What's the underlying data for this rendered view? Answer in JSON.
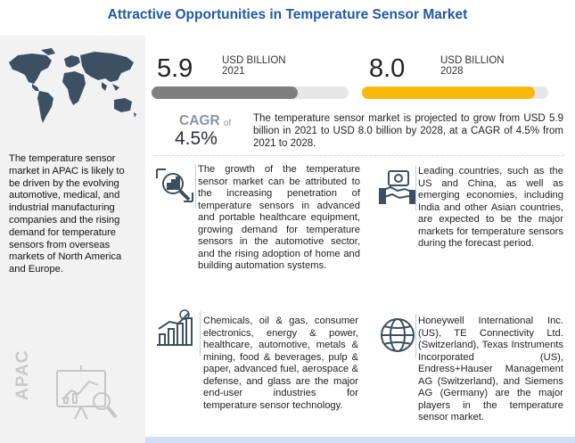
{
  "title": "Attractive Opportunities in Temperature Sensor Market",
  "colors": {
    "title": "#1f5aa6",
    "bar_2021": "#7f7f7f",
    "bar_2028": "#f8b80c",
    "bar_track": "#e6e6e6",
    "accent_line": "#bcd0ea"
  },
  "region_panel": {
    "watermark": "APAC",
    "description": "The temperature sensor market in APAC is likely to be driven by the evolving automotive, medical, and industrial manufacturing companies and the rising demand for temperature sensors from overseas markets of North America and Europe."
  },
  "stats": {
    "value_2021": "5.9",
    "unit_2021": "USD BILLION",
    "year_2021": "2021",
    "value_2028": "8.0",
    "unit_2028": "USD BILLION",
    "year_2028": "2028",
    "fill_2021": 0.74,
    "fill_2028": 0.93
  },
  "cagr": {
    "label": "CAGR",
    "of": "of",
    "value": "4.5%",
    "summary": "The temperature sensor market is projected to grow from USD 5.9 billion in 2021 to USD 8.0 billion by 2028, at a CAGR of 4.5% from 2021 to 2028."
  },
  "cards": [
    {
      "icon": "magnifier-chart-icon",
      "text": "The growth of the temperature sensor market can be attributed to the increasing penetration of temperature sensors in advanced and portable healthcare equipment, growing demand for temperature sensors in the automotive sector, and the rising adoption of home and building automation systems."
    },
    {
      "icon": "handshake-money-icon",
      "text": "Leading countries, such as the US and China, as well as emerging economies, including India and other Asian countries, are expected to be the major markets for temperature sensors during the forecast period."
    },
    {
      "icon": "growth-chart-icon",
      "text": "Chemicals, oil & gas, consumer electronics, energy & power, healthcare, automotive, metals & mining, food & beverages, pulp & paper, advanced fuel, aerospace & defense, and glass are the major end-user industries for temperature sensor technology."
    },
    {
      "icon": "globe-icon",
      "text": "Honeywell International Inc. (US), TE Connectivity Ltd. (Switzerland), Texas Instruments Incorporated (US), Endress+Hauser Management AG (Switzerland), and Siemens AG (Germany) are the major players in the temperature sensor market."
    }
  ]
}
